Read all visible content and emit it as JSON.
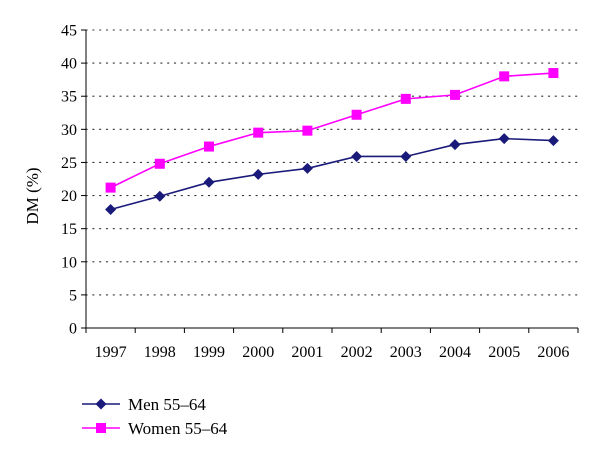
{
  "chart_data": {
    "type": "line",
    "title": "",
    "xlabel": "",
    "ylabel": "DM (%)",
    "categories": [
      "1997",
      "1998",
      "1999",
      "2000",
      "2001",
      "2002",
      "2003",
      "2004",
      "2005",
      "2006"
    ],
    "ylim": [
      0,
      45
    ],
    "yticks": [
      0,
      5,
      10,
      15,
      20,
      25,
      30,
      35,
      40,
      45
    ],
    "grid": "horizontal dotted",
    "legend_position": "bottom-left",
    "series": [
      {
        "name": "Men 55–64",
        "marker": "diamond",
        "color": "#1a1a7a",
        "values": [
          17.9,
          19.9,
          22.0,
          23.2,
          24.1,
          25.9,
          25.9,
          27.7,
          28.6,
          28.3
        ]
      },
      {
        "name": "Women 55–64",
        "marker": "square",
        "color": "#ff00ff",
        "values": [
          21.2,
          24.8,
          27.4,
          29.5,
          29.8,
          32.2,
          34.6,
          35.2,
          38.0,
          38.5
        ]
      }
    ]
  }
}
